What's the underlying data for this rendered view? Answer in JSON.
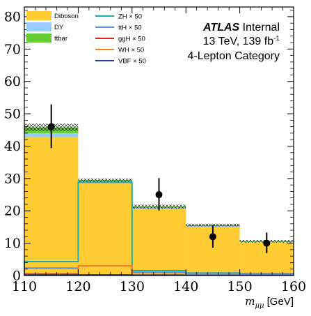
{
  "chart_data": {
    "type": "bar",
    "x_bin_edges": [
      110,
      120,
      130,
      140,
      150,
      160
    ],
    "xlim": [
      110,
      160
    ],
    "ylim": [
      0,
      83
    ],
    "x_ticks": [
      110,
      120,
      130,
      140,
      150,
      160
    ],
    "y_ticks": [
      0,
      10,
      20,
      30,
      40,
      50,
      60,
      70,
      80
    ],
    "xlabel": {
      "symbol": "m",
      "subscript": "μμ",
      "unit": "[GeV]"
    },
    "ylabel": "",
    "stacked_series": [
      {
        "name": "Diboson",
        "color": "#ffcc33",
        "values": [
          42.8,
          28.6,
          20.6,
          15.1,
          10.2
        ]
      },
      {
        "name": "DY",
        "color": "#99ccff",
        "values": [
          1.2,
          0.5,
          0.3,
          0.2,
          0.2
        ]
      },
      {
        "name": "ttbar",
        "color": "#66cc33",
        "values": [
          1.8,
          0.4,
          0.4,
          0.3,
          0.2
        ]
      }
    ],
    "uncertainty_band": {
      "hatched": true,
      "half_width": [
        1.1,
        0.5,
        0.6,
        0.4,
        0.4
      ]
    },
    "signal_series": [
      {
        "name": "ZH × 50",
        "color": "#17b0b0",
        "values": [
          4.3,
          28.8,
          1.5,
          0.8,
          0.5
        ]
      },
      {
        "name": "ttH × 50",
        "color": "#5b8fd6",
        "values": [
          2.3,
          3.0,
          1.0,
          0.7,
          0.6
        ]
      },
      {
        "name": "ggH × 50",
        "color": "#e8231f",
        "values": [
          0.25,
          0.15,
          0.1,
          0.1,
          0.1
        ]
      },
      {
        "name": "WH × 50",
        "color": "#ff7f0e",
        "values": [
          0.6,
          3.0,
          0.3,
          0.2,
          0.2
        ]
      },
      {
        "name": "VBF × 50",
        "color": "#1f3d99",
        "values": [
          0.3,
          0.2,
          0.1,
          0.1,
          0.1
        ]
      }
    ],
    "data_points": {
      "x": [
        115,
        135,
        145,
        155
      ],
      "y": [
        46,
        25,
        12,
        10
      ],
      "yerr_low": [
        6.6,
        4.9,
        3.4,
        3.1
      ],
      "yerr_high": [
        6.9,
        5.1,
        3.6,
        3.3
      ]
    },
    "annotations": {
      "experiment": "ATLAS",
      "status": "Internal",
      "energy_prefix": "13 TeV, 139 fb",
      "energy_superscript": "-1",
      "category": "4-Lepton Category"
    },
    "legend_placement": "top-left"
  }
}
